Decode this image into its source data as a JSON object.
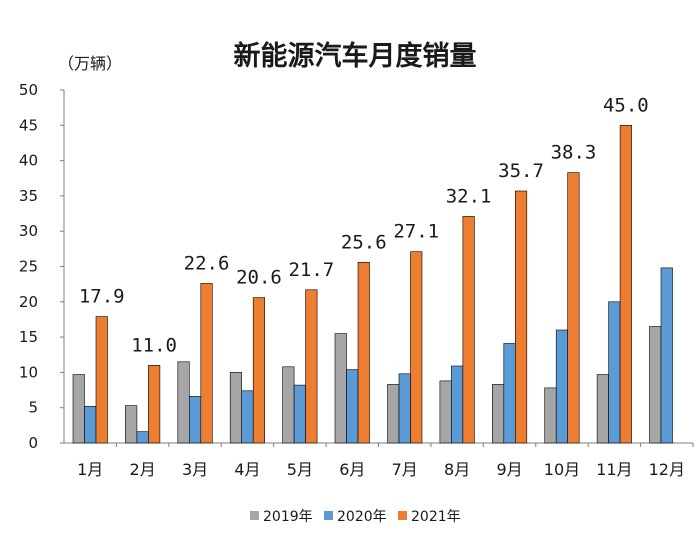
{
  "chart_data": {
    "type": "bar",
    "title": "新能源汽车月度销量",
    "ylabel": "（万辆）",
    "xlabel": "",
    "ylim": [
      0,
      50
    ],
    "yticks": [
      0,
      5,
      10,
      15,
      20,
      25,
      30,
      35,
      40,
      45,
      50
    ],
    "categories": [
      "1月",
      "2月",
      "3月",
      "4月",
      "5月",
      "6月",
      "7月",
      "8月",
      "9月",
      "10月",
      "11月",
      "12月"
    ],
    "series": [
      {
        "name": "2019年",
        "color": "#a6a6a6",
        "values": [
          9.7,
          5.3,
          11.5,
          10.0,
          10.8,
          15.5,
          8.3,
          8.8,
          8.3,
          7.8,
          9.7,
          16.5
        ]
      },
      {
        "name": "2020年",
        "color": "#5b9bd5",
        "values": [
          5.2,
          1.6,
          6.6,
          7.4,
          8.2,
          10.4,
          9.8,
          10.9,
          14.1,
          16.0,
          20.0,
          24.8
        ]
      },
      {
        "name": "2021年",
        "color": "#ed7d31",
        "values": [
          17.9,
          11.0,
          22.6,
          20.6,
          21.7,
          25.6,
          27.1,
          32.1,
          35.7,
          38.3,
          45.0,
          null
        ]
      }
    ],
    "data_labels": {
      "series": "2021年",
      "values": [
        "17.9",
        "11.0",
        "22.6",
        "20.6",
        "21.7",
        "25.6",
        "27.1",
        "32.1",
        "35.7",
        "38.3",
        "45.0",
        ""
      ]
    },
    "grid": false,
    "legend": "bottom"
  }
}
